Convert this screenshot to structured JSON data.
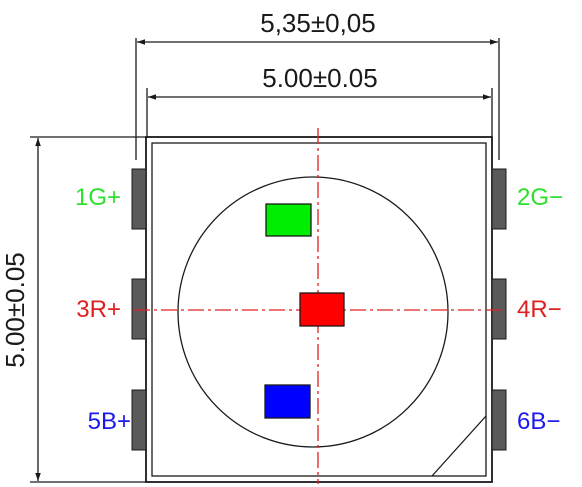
{
  "dimensions": {
    "outer_width": "5,35±0,05",
    "inner_width": "5.00±0.05",
    "height": "5.00±0.05"
  },
  "pins": {
    "left": [
      {
        "label": "1G+",
        "color": "#2ee02e"
      },
      {
        "label": "3R+",
        "color": "#e02020"
      },
      {
        "label": "5B+",
        "color": "#1a1aee"
      }
    ],
    "right": [
      {
        "label": "2G−",
        "color": "#2ee02e"
      },
      {
        "label": "4R−",
        "color": "#e02020"
      },
      {
        "label": "6B−",
        "color": "#1a1aee"
      }
    ]
  },
  "chips": {
    "green": "#00ee00",
    "red": "#ff0000",
    "blue": "#0000ff"
  },
  "colors": {
    "line": "#1a1a1a",
    "pad": "#5a5a5a",
    "centerline": "#e02020"
  }
}
